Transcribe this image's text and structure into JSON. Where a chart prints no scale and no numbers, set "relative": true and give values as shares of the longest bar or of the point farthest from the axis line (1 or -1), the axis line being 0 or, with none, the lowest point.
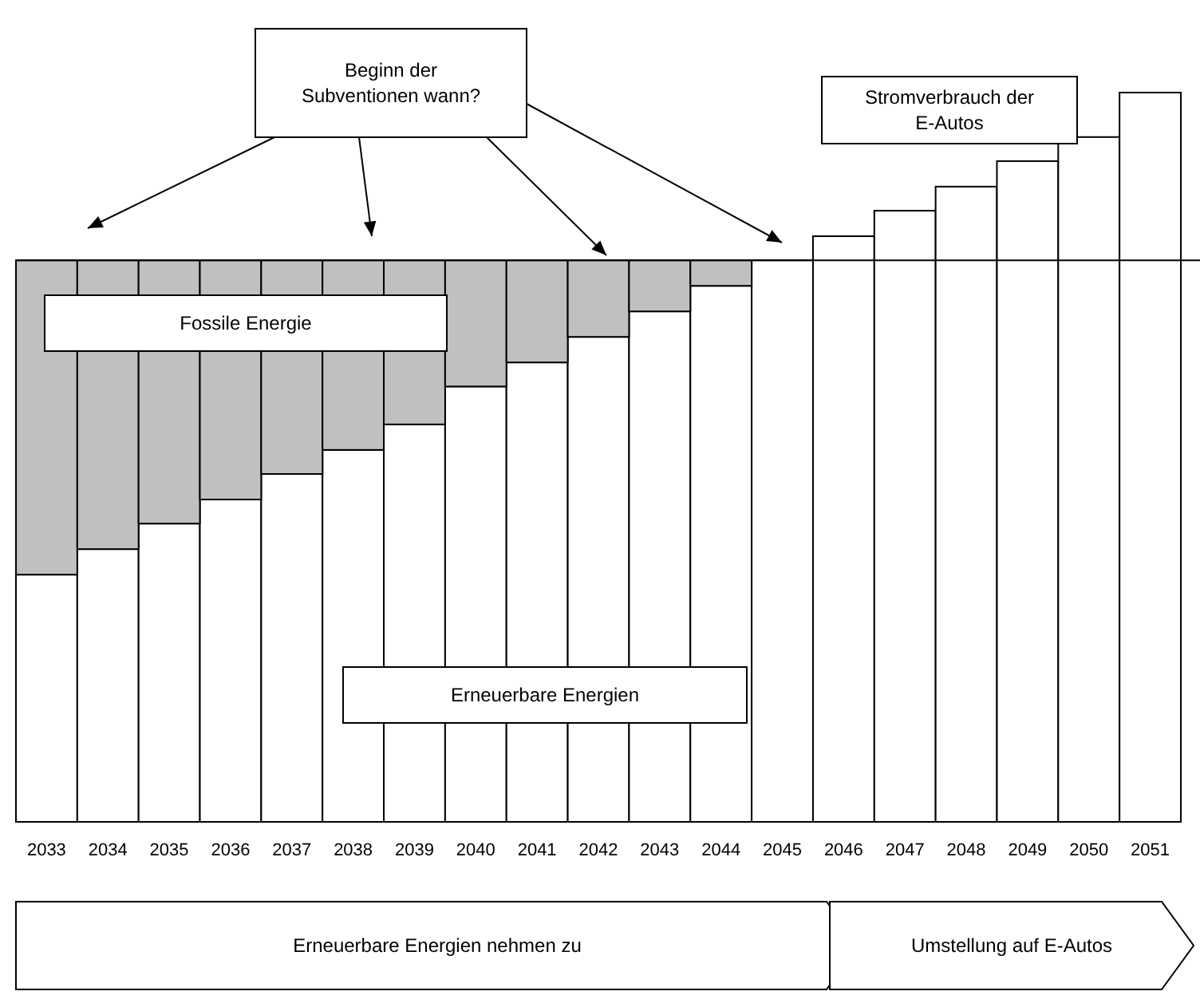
{
  "chart_data": {
    "type": "bar",
    "stacked": true,
    "relative": true,
    "categories": [
      "2033",
      "2034",
      "2035",
      "2036",
      "2037",
      "2038",
      "2039",
      "2040",
      "2041",
      "2042",
      "2043",
      "2044",
      "2045",
      "2046",
      "2047",
      "2048",
      "2049",
      "2050",
      "2051"
    ],
    "series": [
      {
        "name": "Erneuerbare Energien",
        "color": "#ffffff",
        "values": [
          0.339,
          0.374,
          0.409,
          0.442,
          0.477,
          0.51,
          0.545,
          0.597,
          0.63,
          0.665,
          0.7,
          0.735,
          0.77,
          0.803,
          0.838,
          0.871,
          0.906,
          0.939,
          1
        ]
      },
      {
        "name": "Fossile Energie",
        "color": "#c0c0c0",
        "values": [
          0.431,
          0.396,
          0.361,
          0.328,
          0.293,
          0.26,
          0.225,
          0.173,
          0.14,
          0.105,
          0.07,
          0.035,
          null,
          null,
          null,
          null,
          null,
          null,
          null
        ]
      }
    ],
    "ref_lines": [
      {
        "axis": "y",
        "value": 0.77,
        "color": "#000000"
      }
    ],
    "annotations": [
      "Beginn der Subventionen wann?",
      "Stromverbrauch der E-Autos",
      "Erneuerbare Energien nehmen zu",
      "Umstellung auf E-Autos"
    ]
  }
}
